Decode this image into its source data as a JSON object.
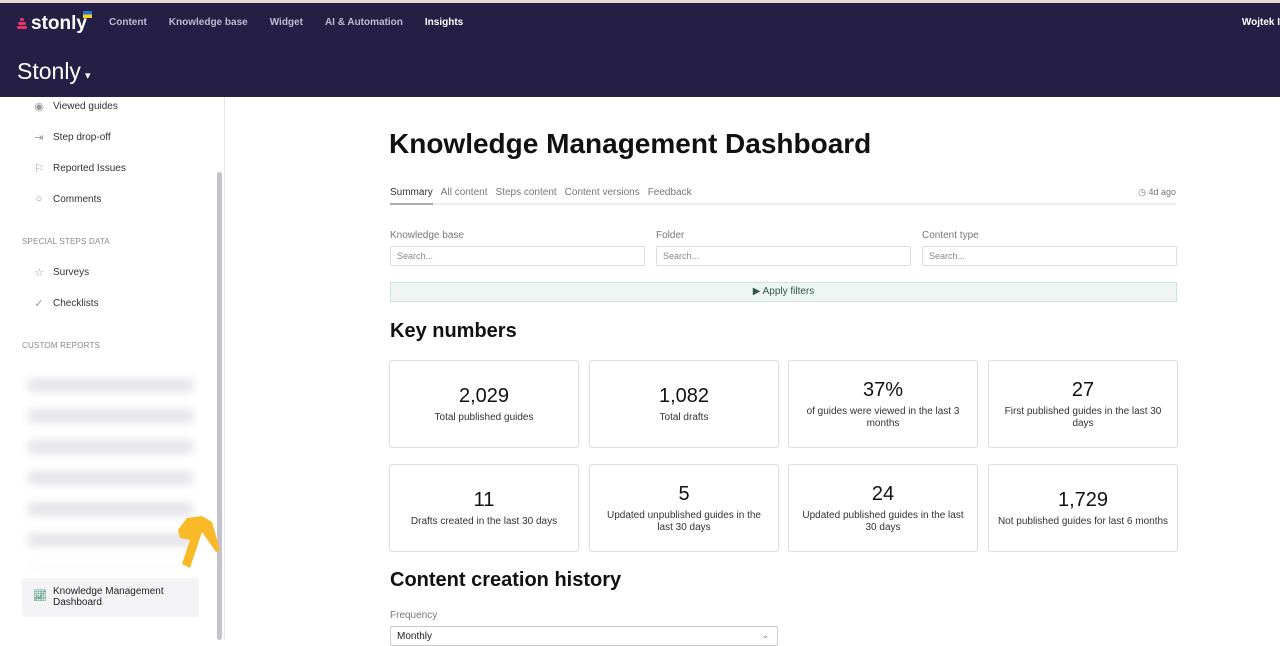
{
  "topbar": {
    "brand": "stonly",
    "nav": [
      "Content",
      "Knowledge base",
      "Widget",
      "AI & Automation",
      "Insights"
    ],
    "active_nav": "Insights",
    "user": "Wojtek I",
    "workspace": "Stonly"
  },
  "sidebar": {
    "items": [
      {
        "label": "Viewed guides",
        "icon": "eye-icon"
      },
      {
        "label": "Step drop-off",
        "icon": "exit-icon"
      },
      {
        "label": "Reported Issues",
        "icon": "flag-icon"
      },
      {
        "label": "Comments",
        "icon": "comment-icon"
      }
    ],
    "special_section": "SPECIAL STEPS DATA",
    "special_items": [
      {
        "label": "Surveys",
        "icon": "star-icon"
      },
      {
        "label": "Checklists",
        "icon": "check-circle-icon"
      }
    ],
    "custom_section": "CUSTOM REPORTS",
    "active_report": "Knowledge Management Dashboard"
  },
  "main": {
    "title": "Knowledge Management Dashboard",
    "tabs": [
      "Summary",
      "All content",
      "Steps content",
      "Content versions",
      "Feedback"
    ],
    "active_tab": "Summary",
    "updated": "4d ago",
    "filters": [
      {
        "label": "Knowledge base",
        "placeholder": "Search..."
      },
      {
        "label": "Folder",
        "placeholder": "Search..."
      },
      {
        "label": "Content type",
        "placeholder": "Search..."
      }
    ],
    "apply_label": "Apply filters",
    "key_numbers_title": "Key numbers",
    "cards": [
      {
        "value": "2,029",
        "label": "Total published guides"
      },
      {
        "value": "1,082",
        "label": "Total drafts"
      },
      {
        "value": "37%",
        "label": "of guides were viewed in the last 3 months"
      },
      {
        "value": "27",
        "label": "First published guides in the last 30 days"
      },
      {
        "value": "11",
        "label": "Drafts created in the last 30 days"
      },
      {
        "value": "5",
        "label": "Updated unpublished guides in the last 30 days"
      },
      {
        "value": "24",
        "label": "Updated published guides in the last 30 days"
      },
      {
        "value": "1,729",
        "label": "Not published guides for last 6 months"
      }
    ],
    "history_title": "Content creation history",
    "frequency_label": "Frequency",
    "frequency_value": "Monthly"
  }
}
